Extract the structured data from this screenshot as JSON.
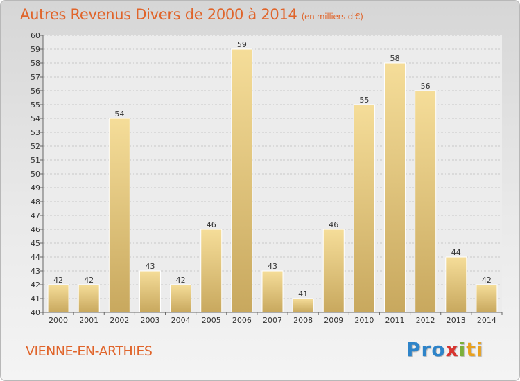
{
  "title": "Autres Revenus Divers de 2000 à 2014",
  "unit": "(en milliers d'€)",
  "location": "VIENNE-EN-ARTHIES",
  "logo": {
    "p1": "Pro",
    "p2": "x",
    "p3": "i",
    "p4": "ti"
  },
  "chart_data": {
    "type": "bar",
    "title": "Autres Revenus Divers de 2000 à 2014",
    "subtitle": "(en milliers d'€)",
    "xlabel": "",
    "ylabel": "",
    "categories": [
      "2000",
      "2001",
      "2002",
      "2003",
      "2004",
      "2005",
      "2006",
      "2007",
      "2008",
      "2009",
      "2010",
      "2011",
      "2012",
      "2013",
      "2014"
    ],
    "values": [
      42,
      42,
      54,
      43,
      42,
      46,
      59,
      43,
      41,
      46,
      55,
      58,
      56,
      44,
      42
    ],
    "ylim": [
      40,
      60
    ],
    "yticks": [
      40,
      41,
      42,
      43,
      44,
      45,
      46,
      47,
      48,
      49,
      50,
      51,
      52,
      53,
      54,
      55,
      56,
      57,
      58,
      59,
      60
    ],
    "grid": true,
    "bar_color": "#e6c87a"
  }
}
